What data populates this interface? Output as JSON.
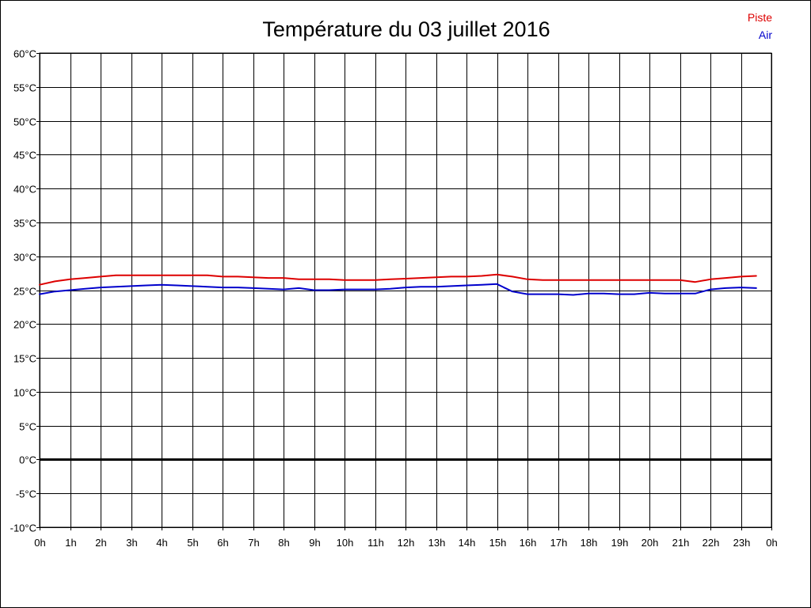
{
  "chart_data": {
    "type": "line",
    "title": "Température du 03 juillet 2016",
    "x_tick_labels": [
      "0h",
      "1h",
      "2h",
      "3h",
      "4h",
      "5h",
      "6h",
      "7h",
      "8h",
      "9h",
      "10h",
      "11h",
      "12h",
      "13h",
      "14h",
      "15h",
      "16h",
      "17h",
      "18h",
      "19h",
      "20h",
      "21h",
      "22h",
      "23h",
      "0h"
    ],
    "y_tick_labels": [
      "60°C",
      "55°C",
      "50°C",
      "45°C",
      "40°C",
      "35°C",
      "30°C",
      "25°C",
      "20°C",
      "15°C",
      "10°C",
      "5°C",
      "0°C",
      "-5°C",
      "-10°C"
    ],
    "xlim": [
      0,
      24
    ],
    "ylim": [
      -10,
      60
    ],
    "y_step": 5,
    "grid": true,
    "zero_line": true,
    "legend_position": "top-right",
    "series": [
      {
        "name": "Piste",
        "color": "#dd0000",
        "x": [
          0,
          0.5,
          1,
          1.5,
          2,
          2.5,
          3,
          3.5,
          4,
          4.5,
          5,
          5.5,
          6,
          6.5,
          7,
          7.5,
          8,
          8.5,
          9,
          9.5,
          10,
          10.5,
          11,
          11.5,
          12,
          12.5,
          13,
          13.5,
          14,
          14.5,
          15,
          15.5,
          16,
          16.5,
          17,
          17.5,
          18,
          18.5,
          19,
          19.5,
          20,
          20.5,
          21,
          21.5,
          22,
          22.5,
          23,
          23.5
        ],
        "values": [
          25.8,
          26.3,
          26.6,
          26.8,
          27.0,
          27.2,
          27.2,
          27.2,
          27.2,
          27.2,
          27.2,
          27.2,
          27.0,
          27.0,
          26.9,
          26.8,
          26.8,
          26.6,
          26.6,
          26.6,
          26.5,
          26.5,
          26.5,
          26.6,
          26.7,
          26.8,
          26.9,
          27.0,
          27.0,
          27.1,
          27.3,
          27.0,
          26.6,
          26.5,
          26.5,
          26.5,
          26.5,
          26.5,
          26.5,
          26.5,
          26.5,
          26.5,
          26.5,
          26.2,
          26.6,
          26.8,
          27.0,
          27.1
        ]
      },
      {
        "name": "Air",
        "color": "#0000cc",
        "x": [
          0,
          0.5,
          1,
          1.5,
          2,
          2.5,
          3,
          3.5,
          4,
          4.5,
          5,
          5.5,
          6,
          6.5,
          7,
          7.5,
          8,
          8.5,
          9,
          9.5,
          10,
          10.5,
          11,
          11.5,
          12,
          12.5,
          13,
          13.5,
          14,
          14.5,
          15,
          15.5,
          16,
          16.5,
          17,
          17.5,
          18,
          18.5,
          19,
          19.5,
          20,
          20.5,
          21,
          21.5,
          22,
          22.5,
          23,
          23.5
        ],
        "values": [
          24.4,
          24.8,
          25.0,
          25.2,
          25.4,
          25.5,
          25.6,
          25.7,
          25.8,
          25.7,
          25.6,
          25.5,
          25.4,
          25.4,
          25.3,
          25.2,
          25.1,
          25.3,
          25.0,
          25.0,
          25.1,
          25.1,
          25.1,
          25.2,
          25.4,
          25.5,
          25.5,
          25.6,
          25.7,
          25.8,
          25.9,
          24.8,
          24.4,
          24.4,
          24.4,
          24.3,
          24.5,
          24.5,
          24.4,
          24.4,
          24.6,
          24.5,
          24.5,
          24.5,
          25.1,
          25.3,
          25.4,
          25.3
        ]
      }
    ]
  }
}
